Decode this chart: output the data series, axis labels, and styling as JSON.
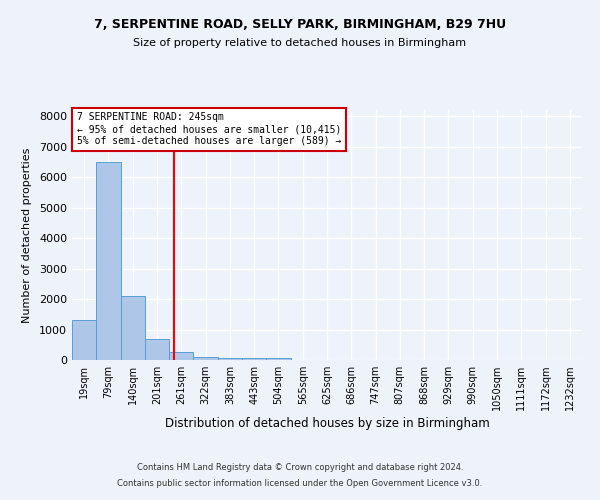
{
  "title1": "7, SERPENTINE ROAD, SELLY PARK, BIRMINGHAM, B29 7HU",
  "title2": "Size of property relative to detached houses in Birmingham",
  "xlabel": "Distribution of detached houses by size in Birmingham",
  "ylabel": "Number of detached properties",
  "bar_color": "#aec6e8",
  "bar_edge_color": "#5a9fd4",
  "categories": [
    "19sqm",
    "79sqm",
    "140sqm",
    "201sqm",
    "261sqm",
    "322sqm",
    "383sqm",
    "443sqm",
    "504sqm",
    "565sqm",
    "625sqm",
    "686sqm",
    "747sqm",
    "807sqm",
    "868sqm",
    "929sqm",
    "990sqm",
    "1050sqm",
    "1111sqm",
    "1172sqm",
    "1232sqm"
  ],
  "values": [
    1300,
    6500,
    2100,
    680,
    270,
    110,
    80,
    60,
    50,
    0,
    0,
    0,
    0,
    0,
    0,
    0,
    0,
    0,
    0,
    0,
    0
  ],
  "red_line_x": 3.7,
  "annotation_text": "7 SERPENTINE ROAD: 245sqm\n← 95% of detached houses are smaller (10,415)\n5% of semi-detached houses are larger (589) →",
  "annotation_box_color": "#ffffff",
  "annotation_box_edgecolor": "#cc0000",
  "ylim": [
    0,
    8200
  ],
  "yticks": [
    0,
    1000,
    2000,
    3000,
    4000,
    5000,
    6000,
    7000,
    8000
  ],
  "bg_color": "#eef2fb",
  "grid_color": "#ffffff",
  "footer1": "Contains HM Land Registry data © Crown copyright and database right 2024.",
  "footer2": "Contains public sector information licensed under the Open Government Licence v3.0."
}
